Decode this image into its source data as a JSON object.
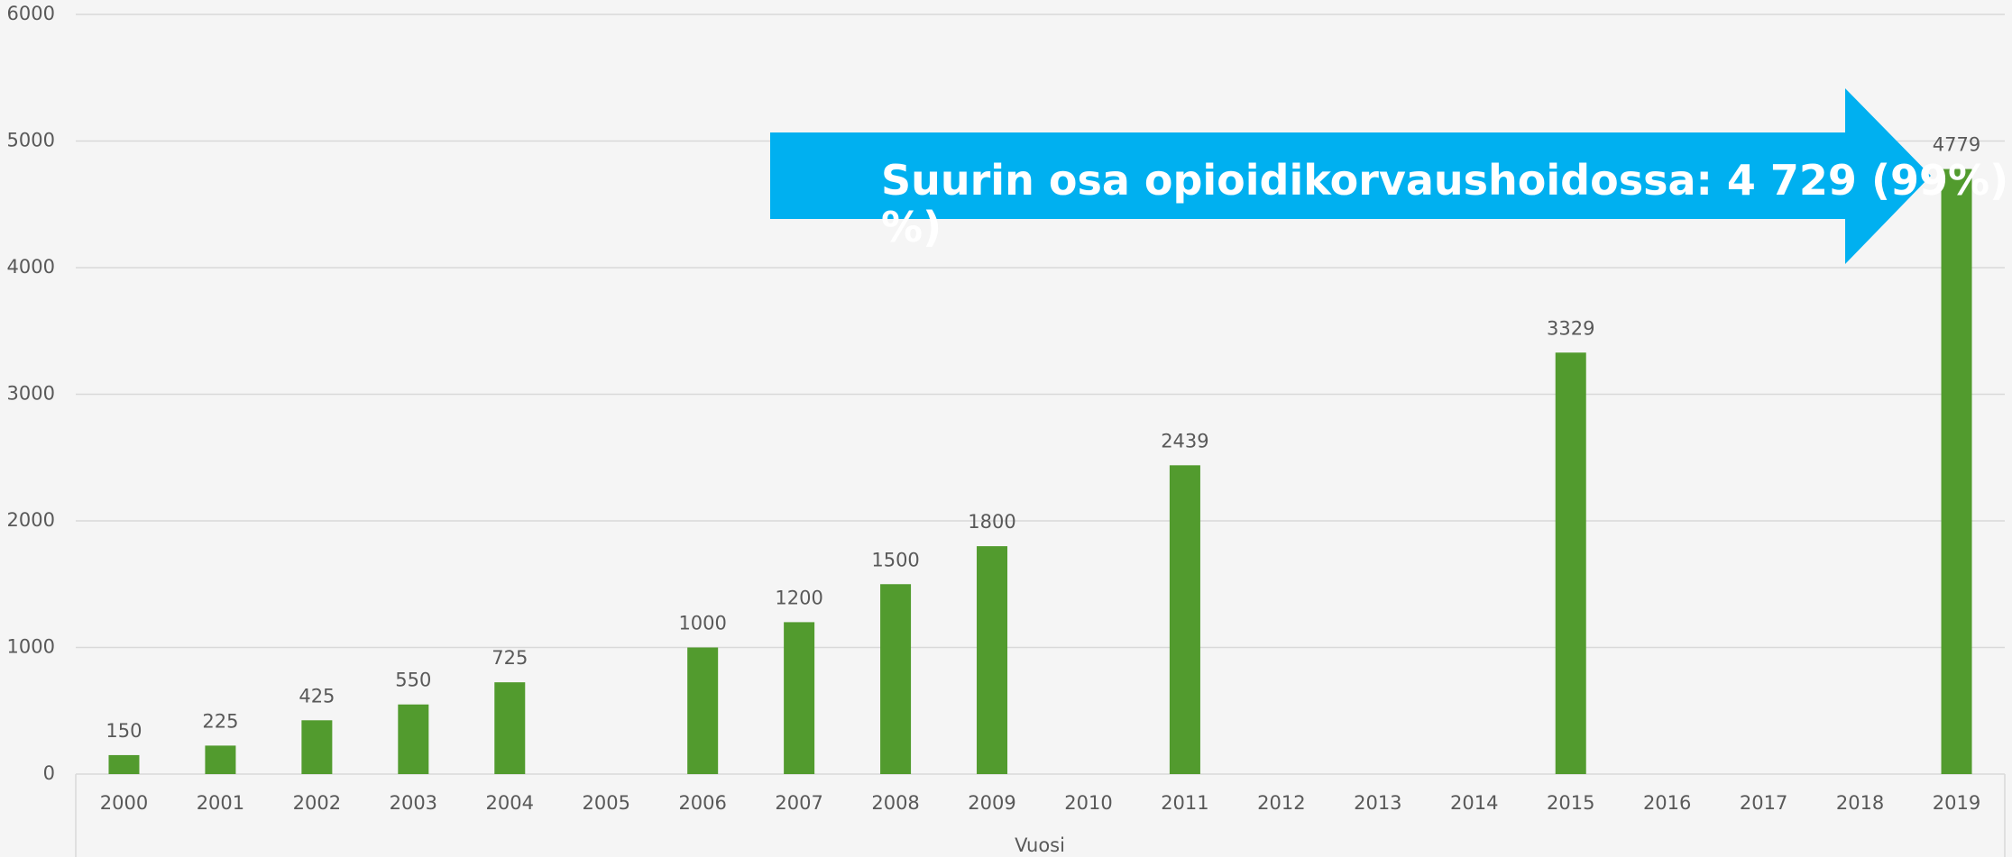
{
  "chart_data": {
    "type": "bar",
    "x_label": "Vuosi",
    "categories": [
      "2000",
      "2001",
      "2002",
      "2003",
      "2004",
      "2005",
      "2006",
      "2007",
      "2008",
      "2009",
      "2010",
      "2011",
      "2012",
      "2013",
      "2014",
      "2015",
      "2016",
      "2017",
      "2018",
      "2019"
    ],
    "values": [
      150,
      225,
      425,
      550,
      725,
      null,
      1000,
      1200,
      1500,
      1800,
      null,
      2439,
      null,
      null,
      null,
      3329,
      null,
      null,
      null,
      4779
    ],
    "color": "#529b2e",
    "ylim": [
      0,
      6000
    ],
    "yticks": [
      0,
      1000,
      2000,
      3000,
      4000,
      5000,
      6000
    ],
    "grid": true,
    "annotation": [
      "Suurin osa opioidikorvaushoidossa: 4 729 (99%)",
      "%)"
    ],
    "annotation_color": "#00b0f0"
  }
}
